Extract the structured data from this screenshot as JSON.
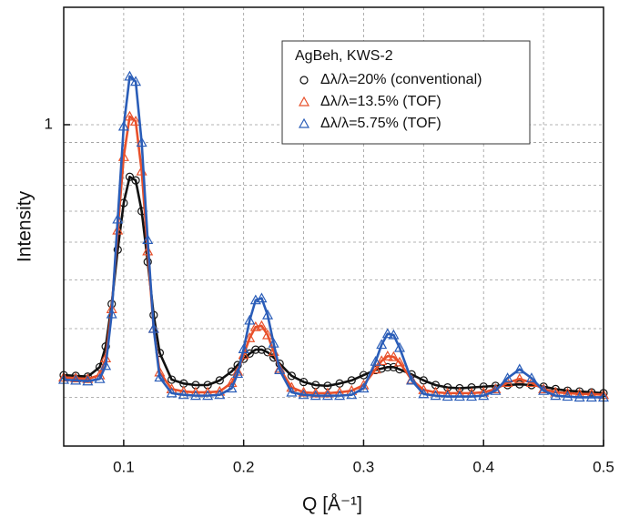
{
  "chart_data": {
    "type": "line",
    "log_y": true,
    "grid": true,
    "xlabel": "Q [Å⁻¹]",
    "ylabel": "Intensity",
    "legend_title": "AgBeh, KWS-2",
    "legend_loc": "upper right",
    "xlim": [
      0.05,
      0.5
    ],
    "xticks": [
      0.1,
      0.2,
      0.3,
      0.4,
      0.5
    ],
    "x_minor_grid": [
      0.15,
      0.25,
      0.35,
      0.45
    ],
    "ylim": [
      0.15,
      2
    ],
    "yticks": [
      1
    ],
    "y_minor_grid": [
      0.2,
      0.3,
      0.4,
      0.5,
      0.6,
      0.7,
      0.8,
      0.9
    ],
    "x": [
      0.05,
      0.06,
      0.07,
      0.08,
      0.085,
      0.09,
      0.095,
      0.1,
      0.105,
      0.11,
      0.115,
      0.12,
      0.125,
      0.13,
      0.14,
      0.15,
      0.16,
      0.17,
      0.18,
      0.19,
      0.195,
      0.2,
      0.205,
      0.21,
      0.215,
      0.22,
      0.225,
      0.23,
      0.24,
      0.25,
      0.26,
      0.27,
      0.28,
      0.29,
      0.3,
      0.31,
      0.315,
      0.32,
      0.325,
      0.33,
      0.34,
      0.35,
      0.36,
      0.37,
      0.38,
      0.39,
      0.4,
      0.41,
      0.42,
      0.43,
      0.44,
      0.45,
      0.46,
      0.47,
      0.48,
      0.49,
      0.5
    ],
    "series": [
      {
        "name": "Δλ/λ=20% (conventional)",
        "color": "#111111",
        "marker": "circle",
        "values": [
          0.228,
          0.227,
          0.226,
          0.239,
          0.27,
          0.347,
          0.478,
          0.63,
          0.735,
          0.72,
          0.6,
          0.445,
          0.325,
          0.26,
          0.222,
          0.217,
          0.215,
          0.215,
          0.221,
          0.233,
          0.242,
          0.251,
          0.259,
          0.265,
          0.265,
          0.261,
          0.253,
          0.244,
          0.227,
          0.219,
          0.215,
          0.214,
          0.217,
          0.221,
          0.228,
          0.235,
          0.237,
          0.239,
          0.239,
          0.236,
          0.229,
          0.221,
          0.215,
          0.212,
          0.211,
          0.212,
          0.213,
          0.214,
          0.215,
          0.216,
          0.215,
          0.213,
          0.21,
          0.208,
          0.207,
          0.206,
          0.205
        ]
      },
      {
        "name": "Δλ/λ=13.5% (TOF)",
        "color": "#e8502a",
        "marker": "triangle",
        "values": [
          0.225,
          0.224,
          0.223,
          0.228,
          0.252,
          0.337,
          0.536,
          0.827,
          1.05,
          1.02,
          0.76,
          0.474,
          0.3,
          0.232,
          0.21,
          0.207,
          0.206,
          0.206,
          0.207,
          0.218,
          0.233,
          0.257,
          0.284,
          0.303,
          0.305,
          0.289,
          0.262,
          0.237,
          0.212,
          0.206,
          0.205,
          0.205,
          0.206,
          0.208,
          0.215,
          0.236,
          0.248,
          0.255,
          0.254,
          0.246,
          0.222,
          0.209,
          0.206,
          0.205,
          0.205,
          0.205,
          0.206,
          0.21,
          0.218,
          0.223,
          0.218,
          0.21,
          0.206,
          0.205,
          0.204,
          0.204,
          0.203
        ]
      },
      {
        "name": "Δλ/λ=5.75% (TOF)",
        "color": "#2a5db8",
        "marker": "triangle",
        "values": [
          0.222,
          0.221,
          0.22,
          0.223,
          0.241,
          0.327,
          0.572,
          0.99,
          1.33,
          1.29,
          0.9,
          0.507,
          0.3,
          0.225,
          0.205,
          0.203,
          0.202,
          0.202,
          0.203,
          0.211,
          0.23,
          0.266,
          0.315,
          0.355,
          0.359,
          0.325,
          0.275,
          0.235,
          0.206,
          0.203,
          0.202,
          0.202,
          0.202,
          0.203,
          0.211,
          0.247,
          0.273,
          0.291,
          0.289,
          0.268,
          0.221,
          0.204,
          0.202,
          0.201,
          0.201,
          0.201,
          0.202,
          0.208,
          0.224,
          0.236,
          0.224,
          0.208,
          0.202,
          0.201,
          0.2,
          0.2,
          0.2
        ]
      }
    ]
  }
}
